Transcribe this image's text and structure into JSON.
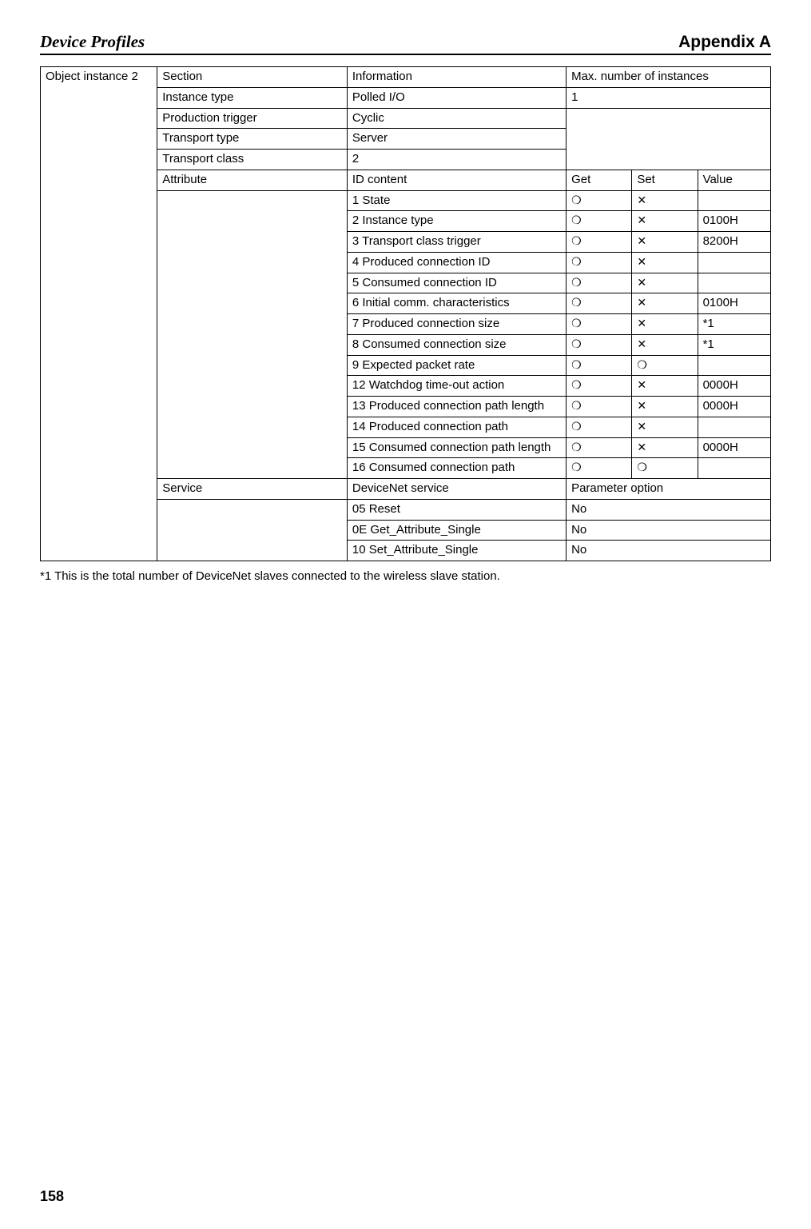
{
  "header": {
    "left": "Device Profiles",
    "right": "Appendix A"
  },
  "symbols": {
    "circle": "❍",
    "cross": "✕"
  },
  "table": {
    "object_label": "Object instance 2",
    "section_hdr": "Section",
    "info_hdr": "Information",
    "max_hdr": "Max. number of instances",
    "rows_top": [
      {
        "sec": "Instance type",
        "info": "Polled I/O",
        "max": "1",
        "no_right_borders": false
      },
      {
        "sec": "Production trigger",
        "info": "Cyclic",
        "max": "",
        "open_below": true
      },
      {
        "sec": "Transport type",
        "info": "Server",
        "max": "",
        "open_below": true
      },
      {
        "sec": "Transport class",
        "info": "2",
        "max": ""
      }
    ],
    "attr_hdr": {
      "sec": "Attribute",
      "info": "ID content",
      "get": "Get",
      "set": "Set",
      "value": "Value"
    },
    "attrs": [
      {
        "info": "1 State",
        "get": "circle",
        "set": "cross",
        "value": ""
      },
      {
        "info": "2 Instance type",
        "get": "circle",
        "set": "cross",
        "value": "0100H"
      },
      {
        "info": "3 Transport class trigger",
        "get": "circle",
        "set": "cross",
        "value": "8200H"
      },
      {
        "info": "4 Produced connection ID",
        "get": "circle",
        "set": "cross",
        "value": ""
      },
      {
        "info": "5 Consumed connection ID",
        "get": "circle",
        "set": "cross",
        "value": ""
      },
      {
        "info": "6 Initial comm. characteristics",
        "get": "circle",
        "set": "cross",
        "value": "0100H"
      },
      {
        "info": "7 Produced connection size",
        "get": "circle",
        "set": "cross",
        "value": "*1"
      },
      {
        "info": "8 Consumed connection size",
        "get": "circle",
        "set": "cross",
        "value": "*1"
      },
      {
        "info": "9 Expected packet rate",
        "get": "circle",
        "set": "circle",
        "value": ""
      },
      {
        "info": "12 Watchdog time-out action",
        "get": "circle",
        "set": "cross",
        "value": "0000H"
      },
      {
        "info": "13 Produced connection path length",
        "hang": true,
        "get": "circle",
        "set": "cross",
        "value": "0000H"
      },
      {
        "info": "14 Produced connection path",
        "get": "circle",
        "set": "cross",
        "value": ""
      },
      {
        "info": "15 Consumed connection path length",
        "hang": true,
        "get": "circle",
        "set": "cross",
        "value": "0000H"
      },
      {
        "info": "16 Consumed connection path",
        "hang": true,
        "get": "circle",
        "set": "circle",
        "value": ""
      }
    ],
    "svc_hdr": {
      "sec": "Service",
      "info": "DeviceNet service",
      "param": "Parameter option"
    },
    "svcs": [
      {
        "info": "05 Reset",
        "param": "No"
      },
      {
        "info": "0E Get_Attribute_Single",
        "param": "No"
      },
      {
        "info": "10 Set_Attribute_Single",
        "param": "No"
      }
    ]
  },
  "footnote": "*1 This is the total number of DeviceNet slaves connected to the wireless slave station.",
  "page_number": "158"
}
